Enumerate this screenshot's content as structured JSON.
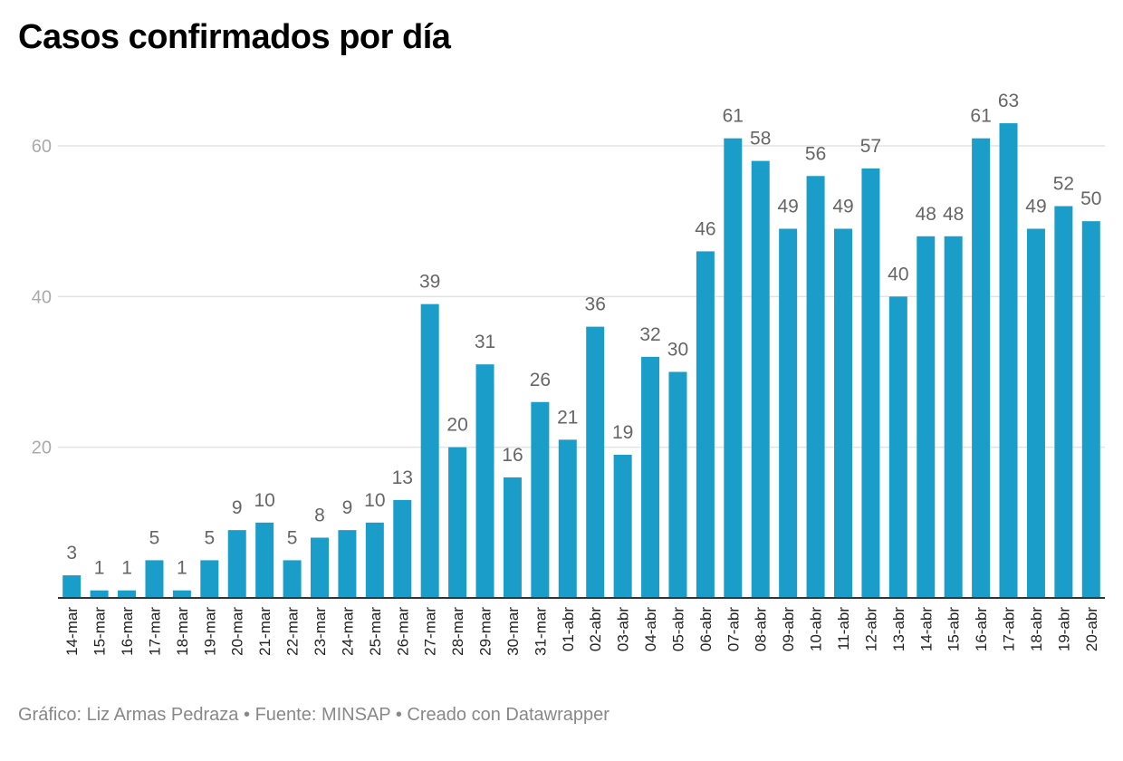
{
  "title": "Casos confirmados por día",
  "footer": {
    "credit": "Gráfico: Liz Armas Pedraza",
    "source": "Fuente: MINSAP",
    "tool": "Creado con Datawrapper",
    "separator": "•"
  },
  "colors": {
    "bar": "#1a9ec9",
    "grid": "#e3e3e3",
    "axis": "#333333"
  },
  "chart_data": {
    "type": "bar",
    "title": "Casos confirmados por día",
    "xlabel": "",
    "ylabel": "",
    "ylim": [
      0,
      63
    ],
    "yticks": [
      20,
      40,
      60
    ],
    "grid": true,
    "legend": "none",
    "categories": [
      "14-mar",
      "15-mar",
      "16-mar",
      "17-mar",
      "18-mar",
      "19-mar",
      "20-mar",
      "21-mar",
      "22-mar",
      "23-mar",
      "24-mar",
      "25-mar",
      "26-mar",
      "27-mar",
      "28-mar",
      "29-mar",
      "30-mar",
      "31-mar",
      "01-abr",
      "02-abr",
      "03-abr",
      "04-abr",
      "05-abr",
      "06-abr",
      "07-abr",
      "08-abr",
      "09-abr",
      "10-abr",
      "11-abr",
      "12-abr",
      "13-abr",
      "14-abr",
      "15-abr",
      "16-abr",
      "17-abr",
      "18-abr",
      "19-abr",
      "20-abr"
    ],
    "values": [
      3,
      1,
      1,
      5,
      1,
      5,
      9,
      10,
      5,
      8,
      9,
      10,
      13,
      39,
      20,
      31,
      16,
      26,
      21,
      36,
      19,
      32,
      30,
      46,
      61,
      58,
      49,
      56,
      49,
      57,
      40,
      48,
      48,
      61,
      63,
      49,
      52,
      50
    ]
  }
}
